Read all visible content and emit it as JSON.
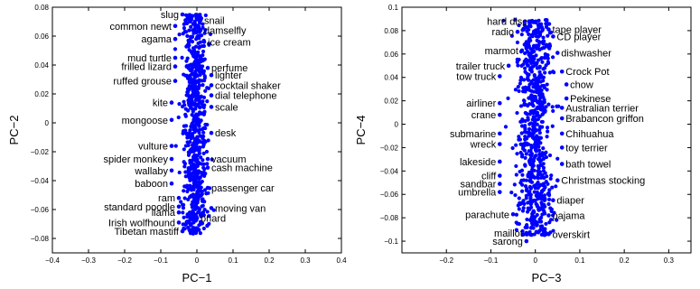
{
  "chart_data": [
    {
      "type": "scatter",
      "xlabel": "PC−1",
      "ylabel": "PC−2",
      "xlim": [
        -0.4,
        0.4
      ],
      "ylim": [
        -0.09,
        0.08
      ],
      "xticks": [
        "−0.4",
        "−0.3",
        "−0.2",
        "−0.1",
        "0",
        "0.1",
        "0.2",
        "0.3",
        "0.4"
      ],
      "yticks": [
        "0.08",
        "0.06",
        "0.04",
        "0.02",
        "0",
        "−0.02",
        "−0.04",
        "−0.06",
        "−0.08"
      ],
      "grid": false,
      "marker_color": "#0000ff",
      "cloud": {
        "x_center": -0.005,
        "x_spread": 0.035,
        "y_range": [
          -0.077,
          0.075
        ],
        "count": 700
      },
      "annotations": [
        {
          "label": "slug",
          "x": -0.04,
          "y": 0.075,
          "anchor": "end"
        },
        {
          "label": "snail",
          "x": 0.01,
          "y": 0.071,
          "anchor": "start"
        },
        {
          "label": "common newt",
          "x": -0.06,
          "y": 0.067,
          "anchor": "end"
        },
        {
          "label": "damselfly",
          "x": 0.01,
          "y": 0.064,
          "anchor": "start"
        },
        {
          "label": "agama",
          "x": -0.06,
          "y": 0.058,
          "anchor": "end"
        },
        {
          "label": "ice cream",
          "x": 0.02,
          "y": 0.056,
          "anchor": "start"
        },
        {
          "label": "mud turtle",
          "x": -0.06,
          "y": 0.045,
          "anchor": "end"
        },
        {
          "label": "frilled lizard",
          "x": -0.06,
          "y": 0.039,
          "anchor": "end"
        },
        {
          "label": "perfume",
          "x": 0.03,
          "y": 0.038,
          "anchor": "start"
        },
        {
          "label": "lighter",
          "x": 0.04,
          "y": 0.033,
          "anchor": "start"
        },
        {
          "label": "ruffed grouse",
          "x": -0.06,
          "y": 0.029,
          "anchor": "end"
        },
        {
          "label": "cocktail shaker",
          "x": 0.04,
          "y": 0.026,
          "anchor": "start"
        },
        {
          "label": "dial telephone",
          "x": 0.04,
          "y": 0.019,
          "anchor": "start"
        },
        {
          "label": "kite",
          "x": -0.07,
          "y": 0.014,
          "anchor": "end"
        },
        {
          "label": "scale",
          "x": 0.04,
          "y": 0.011,
          "anchor": "start"
        },
        {
          "label": "mongoose",
          "x": -0.07,
          "y": 0.002,
          "anchor": "end"
        },
        {
          "label": "desk",
          "x": 0.04,
          "y": -0.007,
          "anchor": "start"
        },
        {
          "label": "vulture",
          "x": -0.07,
          "y": -0.016,
          "anchor": "end"
        },
        {
          "label": "vacuum",
          "x": 0.03,
          "y": -0.025,
          "anchor": "start"
        },
        {
          "label": "spider monkey",
          "x": -0.07,
          "y": -0.025,
          "anchor": "end"
        },
        {
          "label": "cash machine",
          "x": 0.03,
          "y": -0.031,
          "anchor": "start"
        },
        {
          "label": "wallaby",
          "x": -0.07,
          "y": -0.033,
          "anchor": "end"
        },
        {
          "label": "baboon",
          "x": -0.07,
          "y": -0.042,
          "anchor": "end"
        },
        {
          "label": "passenger car",
          "x": 0.03,
          "y": -0.045,
          "anchor": "start"
        },
        {
          "label": "ram",
          "x": -0.05,
          "y": -0.052,
          "anchor": "end"
        },
        {
          "label": "standard poodle",
          "x": -0.05,
          "y": -0.058,
          "anchor": "end"
        },
        {
          "label": "moving van",
          "x": 0.04,
          "y": -0.059,
          "anchor": "start"
        },
        {
          "label": "llama",
          "x": -0.05,
          "y": -0.062,
          "anchor": "end"
        },
        {
          "label": "briard",
          "x": 0.0,
          "y": -0.066,
          "anchor": "start"
        },
        {
          "label": "Irish wolfhound",
          "x": -0.05,
          "y": -0.069,
          "anchor": "end"
        },
        {
          "label": "Tibetan mastiff",
          "x": -0.04,
          "y": -0.075,
          "anchor": "end"
        }
      ]
    },
    {
      "type": "scatter",
      "xlabel": "PC−3",
      "ylabel": "PC−4",
      "xlim": [
        -0.3,
        0.35
      ],
      "ylim": [
        -0.11,
        0.1
      ],
      "xticks": [
        "−0.2",
        "−0.1",
        "0",
        "0.1",
        "0.2",
        "0.3"
      ],
      "yticks": [
        "0.1",
        "0.08",
        "0.06",
        "0.04",
        "0.02",
        "0",
        "−0.02",
        "−0.04",
        "−0.06",
        "−0.08",
        "−0.1"
      ],
      "grid": false,
      "marker_color": "#0000ff",
      "cloud": {
        "x_center": 0.0,
        "x_spread": 0.045,
        "y_range": [
          -0.095,
          0.09
        ],
        "count": 700
      },
      "annotations": [
        {
          "label": "hard disc",
          "x": -0.01,
          "y": 0.088,
          "anchor": "end"
        },
        {
          "label": "tape player",
          "x": 0.03,
          "y": 0.081,
          "anchor": "start"
        },
        {
          "label": "radio",
          "x": -0.04,
          "y": 0.079,
          "anchor": "end"
        },
        {
          "label": "CD player",
          "x": 0.04,
          "y": 0.075,
          "anchor": "start"
        },
        {
          "label": "marmot",
          "x": -0.03,
          "y": 0.063,
          "anchor": "end"
        },
        {
          "label": "dishwasher",
          "x": 0.05,
          "y": 0.061,
          "anchor": "start"
        },
        {
          "label": "trailer truck",
          "x": -0.06,
          "y": 0.05,
          "anchor": "end"
        },
        {
          "label": "Crock Pot",
          "x": 0.06,
          "y": 0.045,
          "anchor": "start"
        },
        {
          "label": "tow truck",
          "x": -0.08,
          "y": 0.041,
          "anchor": "end"
        },
        {
          "label": "chow",
          "x": 0.07,
          "y": 0.034,
          "anchor": "start"
        },
        {
          "label": "Pekinese",
          "x": 0.07,
          "y": 0.022,
          "anchor": "start"
        },
        {
          "label": "airliner",
          "x": -0.08,
          "y": 0.018,
          "anchor": "end"
        },
        {
          "label": "Australian terrier",
          "x": 0.06,
          "y": 0.014,
          "anchor": "start"
        },
        {
          "label": "crane",
          "x": -0.08,
          "y": 0.008,
          "anchor": "end"
        },
        {
          "label": "Brabancon griffon",
          "x": 0.06,
          "y": 0.005,
          "anchor": "start"
        },
        {
          "label": "submarine",
          "x": -0.08,
          "y": -0.008,
          "anchor": "end"
        },
        {
          "label": "Chihuahua",
          "x": 0.06,
          "y": -0.008,
          "anchor": "start"
        },
        {
          "label": "wreck",
          "x": -0.08,
          "y": -0.017,
          "anchor": "end"
        },
        {
          "label": "toy terrier",
          "x": 0.06,
          "y": -0.02,
          "anchor": "start"
        },
        {
          "label": "lakeside",
          "x": -0.08,
          "y": -0.032,
          "anchor": "end"
        },
        {
          "label": "bath towel",
          "x": 0.06,
          "y": -0.034,
          "anchor": "start"
        },
        {
          "label": "cliff",
          "x": -0.08,
          "y": -0.044,
          "anchor": "end"
        },
        {
          "label": "sandbar",
          "x": -0.08,
          "y": -0.051,
          "anchor": "end"
        },
        {
          "label": "Christmas stocking",
          "x": 0.05,
          "y": -0.048,
          "anchor": "start"
        },
        {
          "label": "umbrella",
          "x": -0.08,
          "y": -0.058,
          "anchor": "end"
        },
        {
          "label": "diaper",
          "x": 0.04,
          "y": -0.065,
          "anchor": "start"
        },
        {
          "label": "parachute",
          "x": -0.05,
          "y": -0.077,
          "anchor": "end"
        },
        {
          "label": "pajama",
          "x": 0.03,
          "y": -0.078,
          "anchor": "start"
        },
        {
          "label": "maillot",
          "x": -0.02,
          "y": -0.093,
          "anchor": "end"
        },
        {
          "label": "overskirt",
          "x": 0.03,
          "y": -0.094,
          "anchor": "start"
        },
        {
          "label": "sarong",
          "x": -0.02,
          "y": -0.1,
          "anchor": "end"
        }
      ]
    }
  ]
}
